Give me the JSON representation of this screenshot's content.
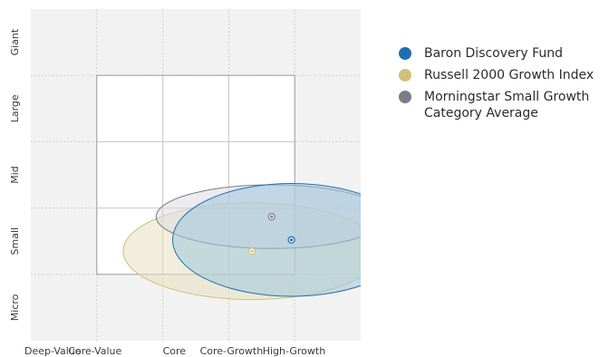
{
  "chart_data": {
    "type": "scatter",
    "title": "",
    "xlabel": "",
    "ylabel": "",
    "x_categories": [
      "Deep-Value",
      "Core-Value",
      "Core",
      "Core-Growth",
      "High-Growth"
    ],
    "y_categories": [
      "Micro",
      "Small",
      "Mid",
      "Large",
      "Giant"
    ],
    "xlim": [
      0,
      5
    ],
    "ylim": [
      0,
      5
    ],
    "grid": true,
    "legend_position": "right",
    "style_box": {
      "x_range": [
        1,
        4
      ],
      "y_range": [
        1,
        4
      ]
    },
    "series": [
      {
        "name": "Baron Discovery Fund",
        "color": "#1f6fb2",
        "fill": "#9fc7dc",
        "point": {
          "x": 3.95,
          "y": 1.52
        },
        "ellipse": {
          "rx": 1.8,
          "ry": 0.85
        }
      },
      {
        "name": "Russell 2000 Growth Index",
        "color": "#cfc07a",
        "fill": "#e6e1bf",
        "point": {
          "x": 3.35,
          "y": 1.35
        },
        "ellipse": {
          "rx": 1.95,
          "ry": 0.73
        }
      },
      {
        "name": "Morningstar Small Growth\nCategory Average",
        "color": "#7d7a8c",
        "fill": "#dcdae2",
        "point": {
          "x": 3.65,
          "y": 1.87
        },
        "ellipse": {
          "rx": 1.75,
          "ry": 0.48
        }
      }
    ]
  }
}
